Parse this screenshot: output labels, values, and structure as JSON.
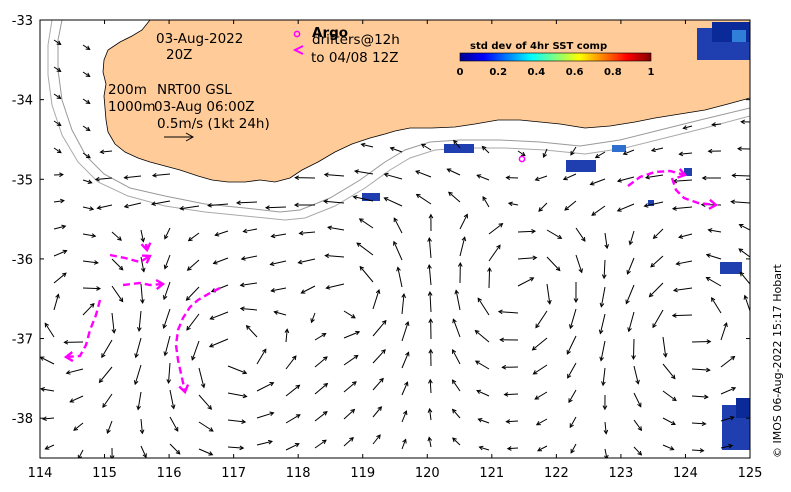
{
  "map": {
    "date": "03-Aug-2022",
    "time": "20Z",
    "contours": [
      "200m",
      "1000m"
    ],
    "product": "NRT00 GSL",
    "product_time": "03-Aug 06:00Z",
    "scale_label": "0.5m/s (1kt 24h)",
    "argo_label": "Argo",
    "drifters_label_1": "drifters@12h",
    "drifters_label_2": "to 04/08 12Z",
    "colorbar_title": "std dev of 4hr SST comp",
    "colorbar_ticks": [
      "0",
      "0.2",
      "0.4",
      "0.6",
      "0.8",
      "1"
    ],
    "credit": "© IMOS 06-Aug-2022 15:17 Hobart",
    "x_ticks": [
      "114",
      "115",
      "116",
      "117",
      "118",
      "119",
      "120",
      "121",
      "122",
      "123",
      "124",
      "125"
    ],
    "y_ticks": [
      "-33",
      "-34",
      "-35",
      "-36",
      "-37",
      "-38"
    ],
    "lon_range": [
      114,
      125
    ],
    "lat_range": [
      -38.5,
      -33
    ],
    "land_color": "#ffcc99",
    "drifter_color": "#ff00ff",
    "coast_color": "#000000"
  }
}
